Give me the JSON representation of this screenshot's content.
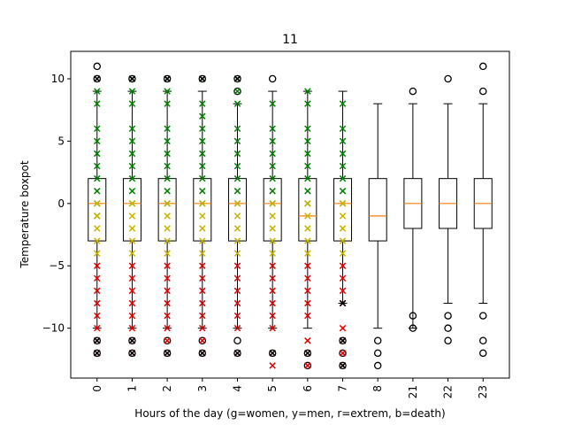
{
  "chart_data": {
    "type": "boxplot",
    "title": "11",
    "xlabel": "Hours of the day (g=women, y=men, r=extrem, b=death)",
    "ylabel": "Temperature boxpot",
    "ylim": [
      -14,
      12.2
    ],
    "yticks": [
      -10,
      -5,
      0,
      5,
      10
    ],
    "ytick_labels": [
      "−10",
      "−5",
      "0",
      "5",
      "10"
    ],
    "categories": [
      "0",
      "1",
      "2",
      "3",
      "4",
      "5",
      "6",
      "7",
      "8",
      "21",
      "22",
      "23"
    ],
    "boxes": [
      {
        "cat": "0",
        "whislo": -10,
        "q1": -3,
        "med": 0,
        "q3": 2,
        "whishi": 9,
        "fliers": [
          -11,
          -12,
          10,
          11
        ]
      },
      {
        "cat": "1",
        "whislo": -10,
        "q1": -3,
        "med": 0,
        "q3": 2,
        "whishi": 9,
        "fliers": [
          -11,
          -12,
          10
        ]
      },
      {
        "cat": "2",
        "whislo": -10,
        "q1": -3,
        "med": 0,
        "q3": 2,
        "whishi": 9,
        "fliers": [
          -11,
          -12,
          10
        ]
      },
      {
        "cat": "3",
        "whislo": -10,
        "q1": -3,
        "med": 0,
        "q3": 2,
        "whishi": 9,
        "fliers": [
          -11,
          -12,
          10
        ]
      },
      {
        "cat": "4",
        "whislo": -10,
        "q1": -3,
        "med": 0,
        "q3": 2,
        "whishi": 8,
        "fliers": [
          -11,
          -12,
          9,
          10
        ]
      },
      {
        "cat": "5",
        "whislo": -10,
        "q1": -3,
        "med": 0,
        "q3": 2,
        "whishi": 9,
        "fliers": [
          -12,
          10
        ]
      },
      {
        "cat": "6",
        "whislo": -10,
        "q1": -3,
        "med": -1,
        "q3": 2,
        "whishi": 9,
        "fliers": [
          -12,
          -13
        ]
      },
      {
        "cat": "7",
        "whislo": -8,
        "q1": -3,
        "med": 0,
        "q3": 2,
        "whishi": 9,
        "fliers": [
          -11,
          -12,
          -13
        ]
      },
      {
        "cat": "8",
        "whislo": -10,
        "q1": -3,
        "med": -1,
        "q3": 2,
        "whishi": 8,
        "fliers": [
          -11,
          -12,
          -13
        ]
      },
      {
        "cat": "21",
        "whislo": -10,
        "q1": -2,
        "med": 0,
        "q3": 2,
        "whishi": 8,
        "fliers": [
          -9,
          -10,
          9
        ]
      },
      {
        "cat": "22",
        "whislo": -8,
        "q1": -2,
        "med": 0,
        "q3": 2,
        "whishi": 8,
        "fliers": [
          -9,
          -10,
          -11,
          10
        ]
      },
      {
        "cat": "23",
        "whislo": -8,
        "q1": -2,
        "med": 0,
        "q3": 2,
        "whishi": 8,
        "fliers": [
          -9,
          -11,
          -12,
          9,
          11
        ]
      }
    ],
    "markers": {
      "women": {
        "color": "#008000",
        "symbol": "x",
        "points": [
          [
            "0",
            9
          ],
          [
            "0",
            8
          ],
          [
            "0",
            6
          ],
          [
            "0",
            5
          ],
          [
            "0",
            4
          ],
          [
            "0",
            3
          ],
          [
            "0",
            2
          ],
          [
            "0",
            1
          ],
          [
            "0",
            0
          ],
          [
            "0",
            -1
          ],
          [
            "1",
            10
          ],
          [
            "1",
            9
          ],
          [
            "1",
            8
          ],
          [
            "1",
            6
          ],
          [
            "1",
            5
          ],
          [
            "1",
            4
          ],
          [
            "1",
            3
          ],
          [
            "1",
            2
          ],
          [
            "1",
            1
          ],
          [
            "1",
            0
          ],
          [
            "2",
            10
          ],
          [
            "2",
            9
          ],
          [
            "2",
            8
          ],
          [
            "2",
            6
          ],
          [
            "2",
            5
          ],
          [
            "2",
            4
          ],
          [
            "2",
            3
          ],
          [
            "2",
            2
          ],
          [
            "2",
            1
          ],
          [
            "2",
            0
          ],
          [
            "3",
            10
          ],
          [
            "3",
            8
          ],
          [
            "3",
            7
          ],
          [
            "3",
            6
          ],
          [
            "3",
            5
          ],
          [
            "3",
            4
          ],
          [
            "3",
            3
          ],
          [
            "3",
            2
          ],
          [
            "3",
            1
          ],
          [
            "3",
            0
          ],
          [
            "4",
            10
          ],
          [
            "4",
            9
          ],
          [
            "4",
            8
          ],
          [
            "4",
            6
          ],
          [
            "4",
            5
          ],
          [
            "4",
            4
          ],
          [
            "4",
            3
          ],
          [
            "4",
            2
          ],
          [
            "4",
            1
          ],
          [
            "4",
            0
          ],
          [
            "5",
            8
          ],
          [
            "5",
            6
          ],
          [
            "5",
            5
          ],
          [
            "5",
            4
          ],
          [
            "5",
            3
          ],
          [
            "5",
            2
          ],
          [
            "5",
            1
          ],
          [
            "5",
            0
          ],
          [
            "6",
            9
          ],
          [
            "6",
            8
          ],
          [
            "6",
            6
          ],
          [
            "6",
            5
          ],
          [
            "6",
            4
          ],
          [
            "6",
            3
          ],
          [
            "6",
            2
          ],
          [
            "6",
            1
          ],
          [
            "6",
            0
          ],
          [
            "7",
            8
          ],
          [
            "7",
            6
          ],
          [
            "7",
            5
          ],
          [
            "7",
            4
          ],
          [
            "7",
            3
          ],
          [
            "7",
            2
          ],
          [
            "7",
            1
          ],
          [
            "7",
            0
          ]
        ]
      },
      "men": {
        "color": "#c8b400",
        "symbol": "x",
        "points": [
          [
            "0",
            -1
          ],
          [
            "0",
            -2
          ],
          [
            "0",
            -3
          ],
          [
            "0",
            -4
          ],
          [
            "0",
            0
          ],
          [
            "1",
            -1
          ],
          [
            "1",
            -2
          ],
          [
            "1",
            -3
          ],
          [
            "1",
            -4
          ],
          [
            "1",
            0
          ],
          [
            "2",
            -1
          ],
          [
            "2",
            -2
          ],
          [
            "2",
            -3
          ],
          [
            "2",
            -4
          ],
          [
            "2",
            0
          ],
          [
            "3",
            -1
          ],
          [
            "3",
            -2
          ],
          [
            "3",
            -3
          ],
          [
            "3",
            -4
          ],
          [
            "3",
            0
          ],
          [
            "4",
            -1
          ],
          [
            "4",
            -2
          ],
          [
            "4",
            -3
          ],
          [
            "4",
            -4
          ],
          [
            "4",
            0
          ],
          [
            "5",
            -1
          ],
          [
            "5",
            -2
          ],
          [
            "5",
            -3
          ],
          [
            "5",
            -4
          ],
          [
            "5",
            0
          ],
          [
            "6",
            -1
          ],
          [
            "6",
            -2
          ],
          [
            "6",
            -3
          ],
          [
            "6",
            -4
          ],
          [
            "6",
            0
          ],
          [
            "7",
            -1
          ],
          [
            "7",
            -2
          ],
          [
            "7",
            -3
          ],
          [
            "7",
            -4
          ],
          [
            "7",
            0
          ]
        ]
      },
      "extrem": {
        "color": "#e00000",
        "symbol": "x",
        "points": [
          [
            "0",
            -5
          ],
          [
            "0",
            -6
          ],
          [
            "0",
            -7
          ],
          [
            "0",
            -8
          ],
          [
            "0",
            -9
          ],
          [
            "0",
            -10
          ],
          [
            "0",
            -11
          ],
          [
            "0",
            -12
          ],
          [
            "1",
            -5
          ],
          [
            "1",
            -6
          ],
          [
            "1",
            -7
          ],
          [
            "1",
            -8
          ],
          [
            "1",
            -9
          ],
          [
            "1",
            -10
          ],
          [
            "1",
            -11
          ],
          [
            "1",
            -12
          ],
          [
            "2",
            -5
          ],
          [
            "2",
            -6
          ],
          [
            "2",
            -7
          ],
          [
            "2",
            -8
          ],
          [
            "2",
            -9
          ],
          [
            "2",
            -10
          ],
          [
            "2",
            -11
          ],
          [
            "2",
            -12
          ],
          [
            "3",
            -5
          ],
          [
            "3",
            -6
          ],
          [
            "3",
            -7
          ],
          [
            "3",
            -8
          ],
          [
            "3",
            -9
          ],
          [
            "3",
            -10
          ],
          [
            "3",
            -11
          ],
          [
            "3",
            -12
          ],
          [
            "4",
            -5
          ],
          [
            "4",
            -6
          ],
          [
            "4",
            -7
          ],
          [
            "4",
            -8
          ],
          [
            "4",
            -9
          ],
          [
            "4",
            -10
          ],
          [
            "4",
            -12
          ],
          [
            "5",
            -5
          ],
          [
            "5",
            -6
          ],
          [
            "5",
            -7
          ],
          [
            "5",
            -8
          ],
          [
            "5",
            -9
          ],
          [
            "5",
            -10
          ],
          [
            "5",
            -12
          ],
          [
            "5",
            -13
          ],
          [
            "6",
            -5
          ],
          [
            "6",
            -6
          ],
          [
            "6",
            -7
          ],
          [
            "6",
            -8
          ],
          [
            "6",
            -9
          ],
          [
            "6",
            -11
          ],
          [
            "6",
            -12
          ],
          [
            "6",
            -13
          ],
          [
            "7",
            -5
          ],
          [
            "7",
            -6
          ],
          [
            "7",
            -7
          ],
          [
            "7",
            -8
          ],
          [
            "7",
            -10
          ],
          [
            "7",
            -11
          ],
          [
            "7",
            -12
          ],
          [
            "7",
            -13
          ]
        ]
      },
      "death": {
        "color": "#000000",
        "symbol": "x",
        "points": [
          [
            "0",
            10
          ],
          [
            "0",
            -11
          ],
          [
            "0",
            -12
          ],
          [
            "1",
            10
          ],
          [
            "1",
            -11
          ],
          [
            "1",
            -12
          ],
          [
            "2",
            10
          ],
          [
            "2",
            -12
          ],
          [
            "3",
            10
          ],
          [
            "3",
            -12
          ],
          [
            "4",
            10
          ],
          [
            "4",
            -12
          ],
          [
            "5",
            -12
          ],
          [
            "6",
            -12
          ],
          [
            "7",
            -8
          ],
          [
            "7",
            -11
          ],
          [
            "7",
            -13
          ]
        ]
      }
    },
    "colors": {
      "box": "#000000",
      "median": "#ff7f0e",
      "flier": "#000000"
    },
    "grid": false
  }
}
